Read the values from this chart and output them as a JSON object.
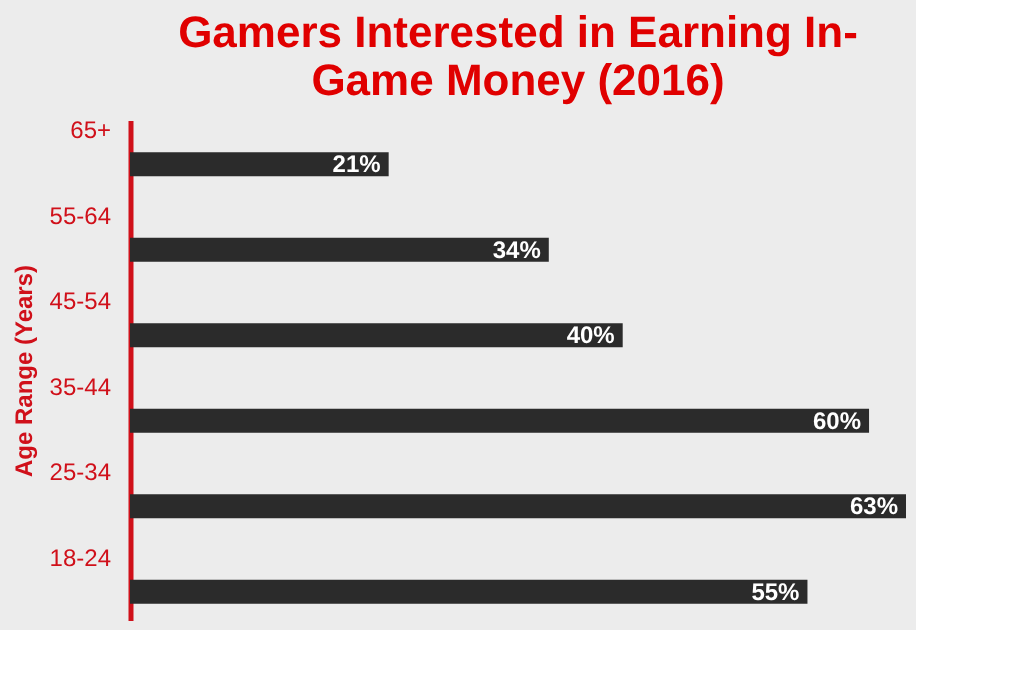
{
  "chart_data": {
    "type": "bar",
    "orientation": "horizontal",
    "title": "Gamers Interested in Earning In-Game Money (2016)",
    "ylabel": "Age Range (Years)",
    "categories": [
      "65+",
      "55-64",
      "45-54",
      "35-44",
      "25-34",
      "18-24"
    ],
    "values": [
      21,
      34,
      40,
      60,
      63,
      55
    ],
    "value_labels": [
      "21%",
      "34%",
      "40%",
      "60%",
      "63%",
      "55%"
    ],
    "color": "#2b2b2b",
    "grid": false,
    "tick_labels": "y"
  }
}
